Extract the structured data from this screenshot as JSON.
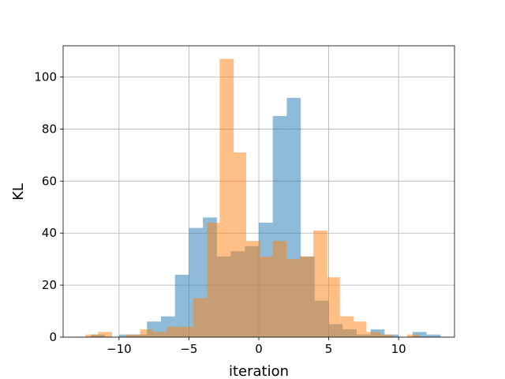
{
  "chart_data": {
    "type": "bar",
    "xlabel": "iteration",
    "ylabel": "KL",
    "xlim": [
      -14,
      14
    ],
    "ylim": [
      0,
      112
    ],
    "grid": true,
    "xticks": [
      -10,
      -5,
      0,
      5,
      10
    ],
    "yticks": [
      0,
      20,
      40,
      60,
      80,
      100
    ],
    "series": [
      {
        "color": "#1f77b4",
        "opacity": 0.5,
        "bins": [
          {
            "x0": -12.0,
            "x1": -11.0,
            "value": 1
          },
          {
            "x0": -10.0,
            "x1": -9.0,
            "value": 1
          },
          {
            "x0": -9.0,
            "x1": -8.0,
            "value": 1
          },
          {
            "x0": -8.0,
            "x1": -7.0,
            "value": 6
          },
          {
            "x0": -7.0,
            "x1": -6.0,
            "value": 8
          },
          {
            "x0": -6.0,
            "x1": -5.0,
            "value": 24
          },
          {
            "x0": -5.0,
            "x1": -4.0,
            "value": 42
          },
          {
            "x0": -4.0,
            "x1": -3.0,
            "value": 46
          },
          {
            "x0": -3.0,
            "x1": -2.0,
            "value": 31
          },
          {
            "x0": -2.0,
            "x1": -1.0,
            "value": 33
          },
          {
            "x0": -1.0,
            "x1": 0.0,
            "value": 35
          },
          {
            "x0": 0.0,
            "x1": 1.0,
            "value": 44
          },
          {
            "x0": 1.0,
            "x1": 2.0,
            "value": 85
          },
          {
            "x0": 2.0,
            "x1": 3.0,
            "value": 92
          },
          {
            "x0": 3.0,
            "x1": 4.0,
            "value": 31
          },
          {
            "x0": 4.0,
            "x1": 5.0,
            "value": 14
          },
          {
            "x0": 5.0,
            "x1": 6.0,
            "value": 5
          },
          {
            "x0": 6.0,
            "x1": 7.0,
            "value": 3
          },
          {
            "x0": 7.0,
            "x1": 8.0,
            "value": 1
          },
          {
            "x0": 8.0,
            "x1": 9.0,
            "value": 3
          },
          {
            "x0": 9.0,
            "x1": 10.0,
            "value": 1
          },
          {
            "x0": 11.0,
            "x1": 12.0,
            "value": 2
          },
          {
            "x0": 12.0,
            "x1": 13.0,
            "value": 1
          }
        ]
      },
      {
        "color": "#ff7f0e",
        "opacity": 0.5,
        "bins": [
          {
            "x0": -12.4,
            "x1": -11.5,
            "value": 1
          },
          {
            "x0": -11.5,
            "x1": -10.5,
            "value": 2
          },
          {
            "x0": -9.5,
            "x1": -8.5,
            "value": 1
          },
          {
            "x0": -8.5,
            "x1": -7.6,
            "value": 3
          },
          {
            "x0": -7.6,
            "x1": -6.6,
            "value": 2
          },
          {
            "x0": -6.6,
            "x1": -5.7,
            "value": 4
          },
          {
            "x0": -5.7,
            "x1": -4.7,
            "value": 4
          },
          {
            "x0": -4.7,
            "x1": -3.7,
            "value": 15
          },
          {
            "x0": -3.7,
            "x1": -2.8,
            "value": 44
          },
          {
            "x0": -2.8,
            "x1": -1.8,
            "value": 107
          },
          {
            "x0": -1.8,
            "x1": -0.9,
            "value": 71
          },
          {
            "x0": -0.9,
            "x1": 0.1,
            "value": 37
          },
          {
            "x0": 0.1,
            "x1": 1.0,
            "value": 31
          },
          {
            "x0": 1.0,
            "x1": 2.0,
            "value": 37
          },
          {
            "x0": 2.0,
            "x1": 2.9,
            "value": 30
          },
          {
            "x0": 2.9,
            "x1": 3.9,
            "value": 31
          },
          {
            "x0": 3.9,
            "x1": 4.9,
            "value": 41
          },
          {
            "x0": 4.9,
            "x1": 5.8,
            "value": 23
          },
          {
            "x0": 5.8,
            "x1": 6.8,
            "value": 8
          },
          {
            "x0": 6.8,
            "x1": 7.7,
            "value": 6
          },
          {
            "x0": 7.7,
            "x1": 8.7,
            "value": 2
          },
          {
            "x0": 8.7,
            "x1": 9.6,
            "value": 1
          },
          {
            "x0": 10.6,
            "x1": 11.5,
            "value": 1
          }
        ]
      }
    ]
  }
}
